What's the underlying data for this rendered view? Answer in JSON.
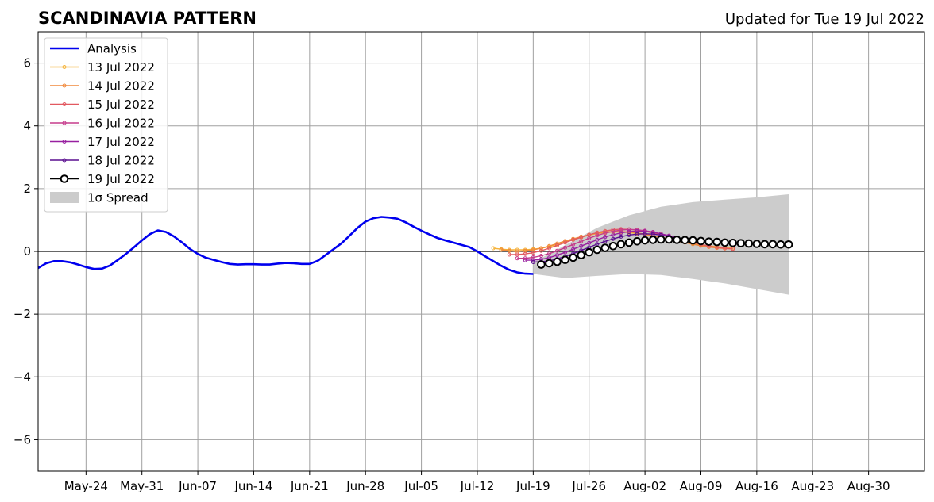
{
  "title": "SCANDINAVIA PATTERN",
  "subtitle": "Updated for Tue 19 Jul 2022",
  "chart_data": {
    "type": "line",
    "title": "SCANDINAVIA PATTERN",
    "subtitle": "Updated for Tue 19 Jul 2022",
    "xlabel": "",
    "ylabel": "",
    "x_range": [
      "2022-05-18",
      "2022-09-06"
    ],
    "ylim": [
      -7,
      7
    ],
    "grid": true,
    "legend_position": "top-left",
    "x_ticks": [
      {
        "date": "2022-05-24",
        "label": "May-24"
      },
      {
        "date": "2022-05-31",
        "label": "May-31"
      },
      {
        "date": "2022-06-07",
        "label": "Jun-07"
      },
      {
        "date": "2022-06-14",
        "label": "Jun-14"
      },
      {
        "date": "2022-06-21",
        "label": "Jun-21"
      },
      {
        "date": "2022-06-28",
        "label": "Jun-28"
      },
      {
        "date": "2022-07-05",
        "label": "Jul-05"
      },
      {
        "date": "2022-07-12",
        "label": "Jul-12"
      },
      {
        "date": "2022-07-19",
        "label": "Jul-19"
      },
      {
        "date": "2022-07-26",
        "label": "Jul-26"
      },
      {
        "date": "2022-08-02",
        "label": "Aug-02"
      },
      {
        "date": "2022-08-09",
        "label": "Aug-09"
      },
      {
        "date": "2022-08-16",
        "label": "Aug-16"
      },
      {
        "date": "2022-08-23",
        "label": "Aug-23"
      },
      {
        "date": "2022-08-30",
        "label": "Aug-30"
      }
    ],
    "y_ticks": [
      {
        "value": -6,
        "label": "−6"
      },
      {
        "value": -4,
        "label": "−4"
      },
      {
        "value": -2,
        "label": "−2"
      },
      {
        "value": 0,
        "label": "0"
      },
      {
        "value": 2,
        "label": "2"
      },
      {
        "value": 4,
        "label": "4"
      },
      {
        "value": 6,
        "label": "6"
      }
    ],
    "zero_line": true,
    "analysis": {
      "name": "Analysis",
      "color": "#0000ee",
      "x": [
        "2022-05-18",
        "2022-05-19",
        "2022-05-20",
        "2022-05-21",
        "2022-05-22",
        "2022-05-23",
        "2022-05-24",
        "2022-05-25",
        "2022-05-26",
        "2022-05-27",
        "2022-05-28",
        "2022-05-29",
        "2022-05-30",
        "2022-05-31",
        "2022-06-01",
        "2022-06-02",
        "2022-06-03",
        "2022-06-04",
        "2022-06-05",
        "2022-06-06",
        "2022-06-07",
        "2022-06-08",
        "2022-06-09",
        "2022-06-10",
        "2022-06-11",
        "2022-06-12",
        "2022-06-13",
        "2022-06-14",
        "2022-06-15",
        "2022-06-16",
        "2022-06-17",
        "2022-06-18",
        "2022-06-19",
        "2022-06-20",
        "2022-06-21",
        "2022-06-22",
        "2022-06-23",
        "2022-06-24",
        "2022-06-25",
        "2022-06-26",
        "2022-06-27",
        "2022-06-28",
        "2022-06-29",
        "2022-06-30",
        "2022-07-01",
        "2022-07-02",
        "2022-07-03",
        "2022-07-04",
        "2022-07-05",
        "2022-07-06",
        "2022-07-07",
        "2022-07-08",
        "2022-07-09",
        "2022-07-10",
        "2022-07-11",
        "2022-07-12",
        "2022-07-13",
        "2022-07-14",
        "2022-07-15",
        "2022-07-16",
        "2022-07-17",
        "2022-07-18",
        "2022-07-19"
      ],
      "values": [
        -0.53,
        -0.38,
        -0.31,
        -0.31,
        -0.35,
        -0.42,
        -0.5,
        -0.56,
        -0.55,
        -0.45,
        -0.27,
        -0.08,
        0.13,
        0.35,
        0.55,
        0.67,
        0.62,
        0.48,
        0.29,
        0.08,
        -0.08,
        -0.2,
        -0.27,
        -0.34,
        -0.4,
        -0.42,
        -0.41,
        -0.41,
        -0.42,
        -0.42,
        -0.39,
        -0.37,
        -0.38,
        -0.4,
        -0.4,
        -0.3,
        -0.12,
        0.07,
        0.26,
        0.5,
        0.75,
        0.95,
        1.06,
        1.1,
        1.08,
        1.04,
        0.93,
        0.79,
        0.66,
        0.54,
        0.43,
        0.35,
        0.28,
        0.21,
        0.14,
        0.0,
        -0.16,
        -0.31,
        -0.46,
        -0.59,
        -0.67,
        -0.71,
        -0.72
      ]
    },
    "forecasts": [
      {
        "name": "13 Jul 2022",
        "color": "#f5b33a",
        "start": "2022-07-14",
        "values": [
          0.1,
          0.07,
          0.05,
          0.05,
          0.05,
          0.07,
          0.1,
          0.15,
          0.22,
          0.3,
          0.38,
          0.45,
          0.52,
          0.57,
          0.6,
          0.62,
          0.62,
          0.6,
          0.57,
          0.54,
          0.5,
          0.45,
          0.4,
          0.35,
          0.3,
          0.25,
          0.21,
          0.18,
          0.15,
          0.13,
          0.12
        ]
      },
      {
        "name": "14 Jul 2022",
        "color": "#f0893c",
        "start": "2022-07-15",
        "values": [
          0.05,
          0.02,
          0.0,
          0.02,
          0.05,
          0.1,
          0.17,
          0.25,
          0.33,
          0.4,
          0.47,
          0.53,
          0.58,
          0.62,
          0.63,
          0.63,
          0.62,
          0.59,
          0.55,
          0.5,
          0.45,
          0.39,
          0.33,
          0.28,
          0.23,
          0.18,
          0.14,
          0.11,
          0.09,
          0.08
        ]
      },
      {
        "name": "15 Jul 2022",
        "color": "#e25960",
        "start": "2022-07-16",
        "values": [
          -0.1,
          -0.1,
          -0.08,
          -0.04,
          0.02,
          0.1,
          0.19,
          0.28,
          0.37,
          0.45,
          0.53,
          0.6,
          0.65,
          0.69,
          0.71,
          0.7,
          0.68,
          0.64,
          0.59,
          0.53,
          0.47,
          0.4,
          0.34,
          0.28,
          0.22,
          0.17,
          0.13,
          0.1,
          0.08
        ]
      },
      {
        "name": "16 Jul 2022",
        "color": "#c53b8c",
        "start": "2022-07-17",
        "values": [
          -0.22,
          -0.22,
          -0.19,
          -0.14,
          -0.07,
          0.02,
          0.12,
          0.22,
          0.32,
          0.42,
          0.51,
          0.58,
          0.64,
          0.68,
          0.7,
          0.69,
          0.66,
          0.62,
          0.56,
          0.5,
          0.44,
          0.38,
          0.32,
          0.27
        ]
      },
      {
        "name": "17 Jul 2022",
        "color": "#9820a0",
        "start": "2022-07-18",
        "values": [
          -0.28,
          -0.28,
          -0.25,
          -0.2,
          -0.12,
          -0.03,
          0.07,
          0.17,
          0.27,
          0.37,
          0.46,
          0.53,
          0.59,
          0.63,
          0.65,
          0.64,
          0.61,
          0.56,
          0.5,
          0.44,
          0.38
        ]
      },
      {
        "name": "18 Jul 2022",
        "color": "#5a0f8f",
        "start": "2022-07-19",
        "values": [
          -0.34,
          -0.33,
          -0.3,
          -0.24,
          -0.16,
          -0.07,
          0.03,
          0.13,
          0.23,
          0.32,
          0.4,
          0.47,
          0.52,
          0.55,
          0.56,
          0.55,
          0.52,
          0.47,
          0.42,
          0.36
        ]
      }
    ],
    "latest": {
      "name": "19 Jul 2022",
      "color": "#000000",
      "start": "2022-07-20",
      "values": [
        -0.42,
        -0.38,
        -0.33,
        -0.27,
        -0.2,
        -0.12,
        -0.03,
        0.05,
        0.11,
        0.17,
        0.23,
        0.28,
        0.32,
        0.35,
        0.37,
        0.38,
        0.38,
        0.37,
        0.36,
        0.35,
        0.33,
        0.31,
        0.3,
        0.28,
        0.27,
        0.26,
        0.25,
        0.24,
        0.23,
        0.23,
        0.22,
        0.22
      ]
    },
    "spread": {
      "name": "1σ Spread",
      "color": "#cccccc",
      "x": [
        "2022-07-19",
        "2022-07-23",
        "2022-07-27",
        "2022-07-31",
        "2022-08-04",
        "2022-08-08",
        "2022-08-12",
        "2022-08-16",
        "2022-08-20"
      ],
      "upper": [
        -0.35,
        0.2,
        0.75,
        1.15,
        1.42,
        1.57,
        1.65,
        1.72,
        1.82
      ],
      "lower": [
        -0.72,
        -0.85,
        -0.78,
        -0.72,
        -0.75,
        -0.88,
        -1.02,
        -1.2,
        -1.38
      ]
    },
    "legend": [
      "Analysis",
      "13 Jul 2022",
      "14 Jul 2022",
      "15 Jul 2022",
      "16 Jul 2022",
      "17 Jul 2022",
      "18 Jul 2022",
      "19 Jul 2022",
      "1σ Spread"
    ]
  }
}
